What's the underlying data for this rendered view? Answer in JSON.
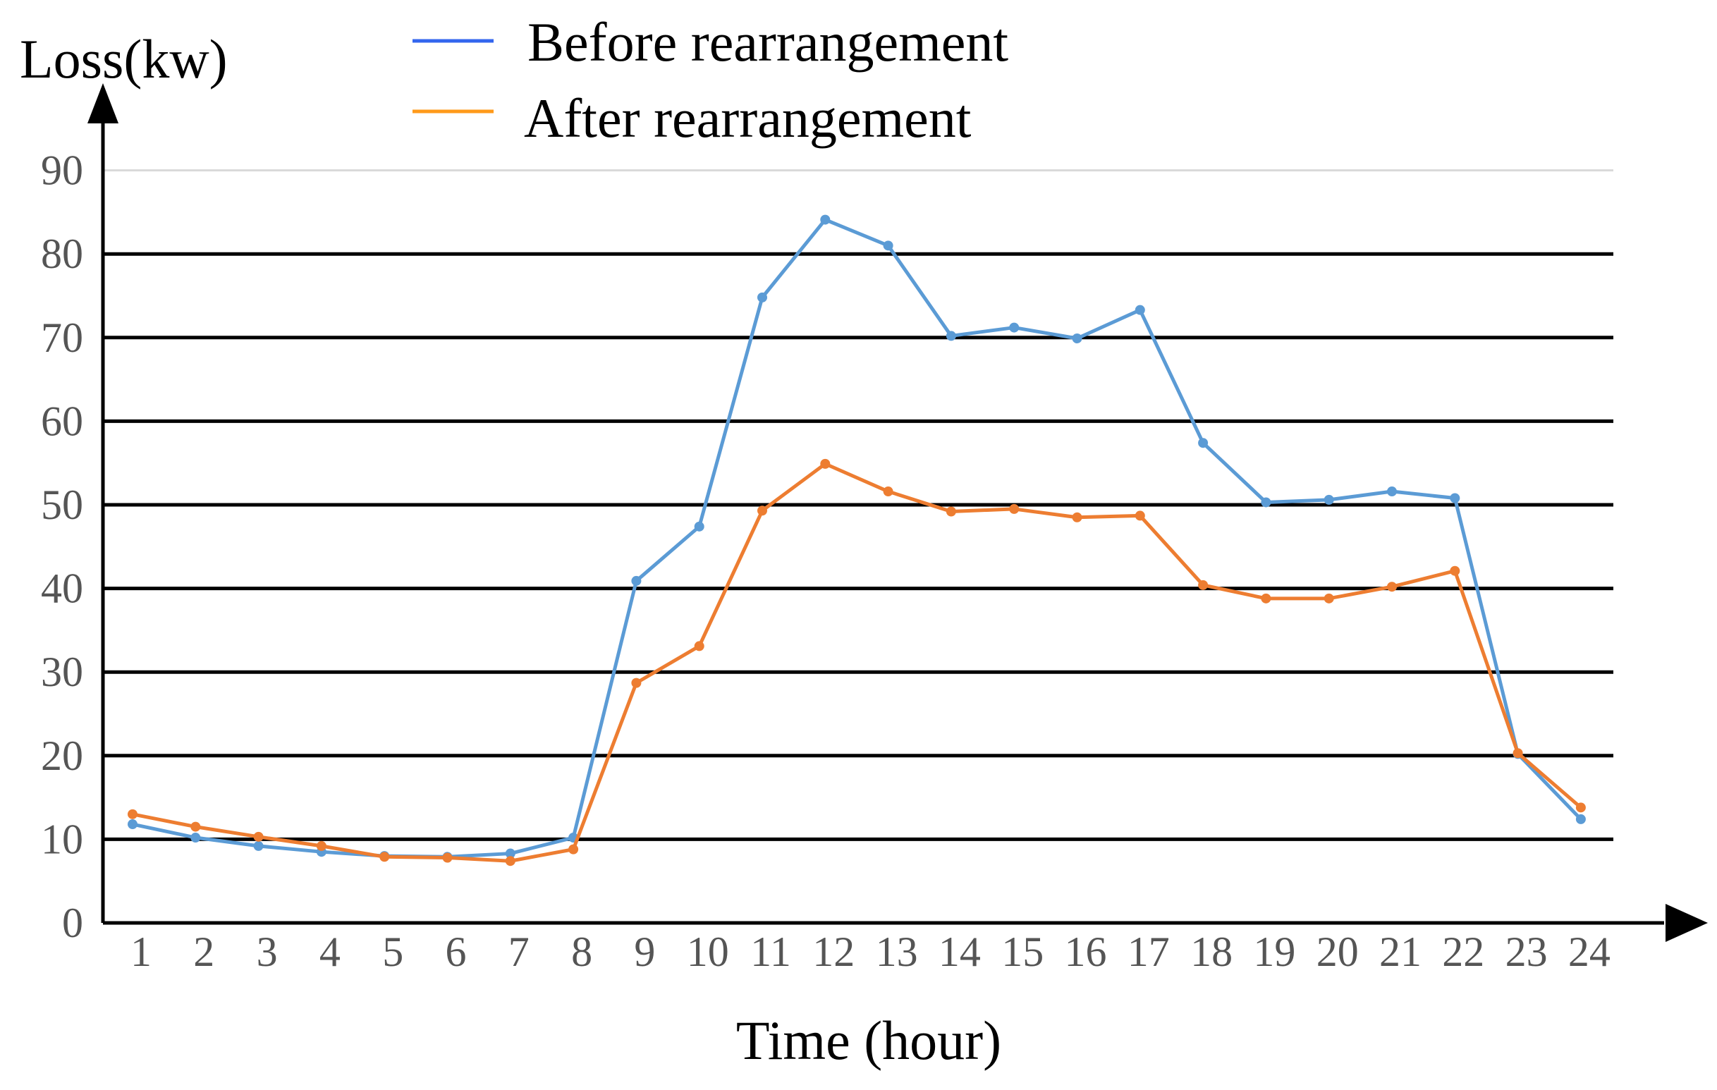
{
  "chart_data": {
    "type": "line",
    "ylabel": "Loss(kw)",
    "xlabel": "Time (hour)",
    "categories": [
      "1",
      "2",
      "3",
      "4",
      "5",
      "6",
      "7",
      "8",
      "9",
      "10",
      "11",
      "12",
      "13",
      "14",
      "15",
      "16",
      "17",
      "18",
      "19",
      "20",
      "21",
      "22",
      "23",
      "24"
    ],
    "ylim": [
      0,
      90
    ],
    "y_ticks": [
      "0",
      "10",
      "20",
      "30",
      "40",
      "50",
      "60",
      "70",
      "80",
      "90"
    ],
    "grid": true,
    "legend_position": "top-center",
    "series": [
      {
        "name": "Before rearrangement",
        "legend_color": "#3366ee",
        "line_color": "#5b9bd5",
        "values": [
          11.8,
          10.2,
          9.2,
          8.5,
          8.0,
          7.9,
          8.3,
          10.2,
          40.9,
          47.4,
          74.8,
          84.1,
          81.0,
          70.2,
          71.2,
          69.9,
          73.3,
          57.4,
          50.3,
          50.6,
          51.6,
          50.8,
          20.2,
          12.4
        ]
      },
      {
        "name": "After rearrangement",
        "legend_color": "#ff9a1a",
        "line_color": "#ed7d31",
        "values": [
          13.0,
          11.5,
          10.3,
          9.2,
          7.9,
          7.8,
          7.4,
          8.8,
          28.7,
          33.1,
          49.3,
          54.9,
          51.6,
          49.2,
          49.5,
          48.5,
          48.7,
          40.4,
          38.8,
          38.8,
          40.2,
          42.1,
          20.3,
          13.8
        ]
      }
    ]
  }
}
